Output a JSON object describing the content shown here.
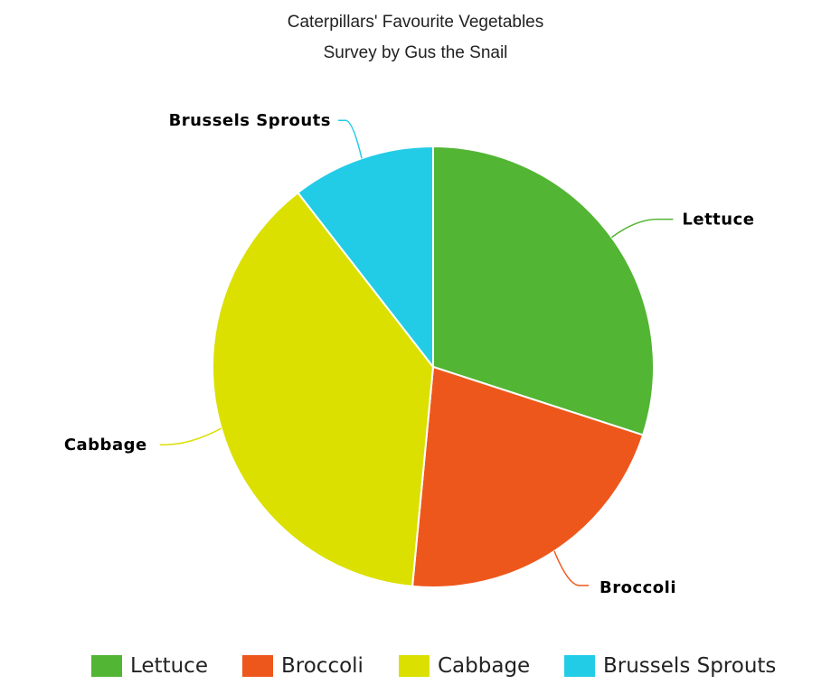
{
  "chart_data": {
    "type": "pie",
    "title": "Caterpillars' Favourite Vegetables",
    "subtitle": "Survey by Gus the Snail",
    "slices": [
      {
        "label": "Lettuce",
        "value": 30,
        "color": "#52b534"
      },
      {
        "label": "Broccoli",
        "value": 21.5,
        "color": "#ee571c"
      },
      {
        "label": "Cabbage",
        "value": 38,
        "color": "#dbe000"
      },
      {
        "label": "Brussels Sprouts",
        "value": 10.5,
        "color": "#23cce6"
      }
    ],
    "start_angle_deg": 0,
    "direction": "clockwise",
    "legend": {
      "position": "bottom"
    }
  }
}
